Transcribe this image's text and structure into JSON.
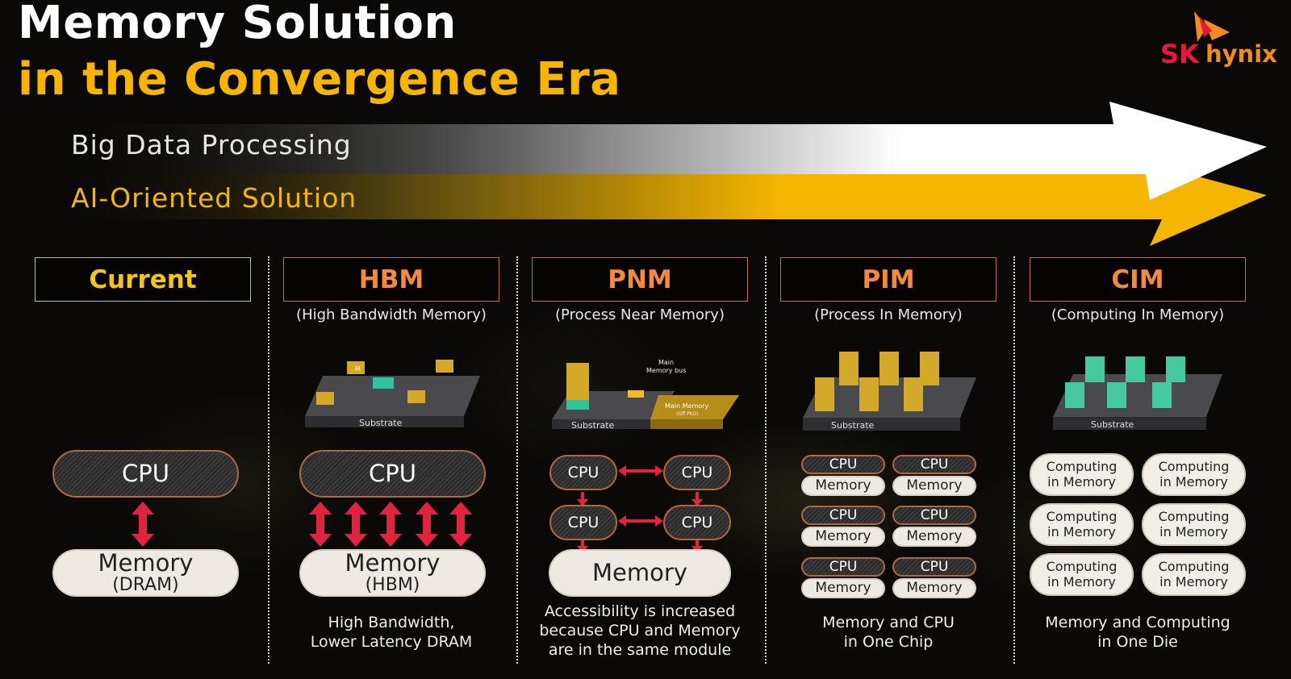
{
  "title": {
    "line1": "Memory Solution",
    "line2": "in the Convergence Era"
  },
  "logo": {
    "sk": "SK",
    "hynix": "hynix"
  },
  "bands": {
    "big_data": "Big Data Processing",
    "ai": "AI-Oriented Solution"
  },
  "colors": {
    "yellow": "#f7b500",
    "orange": "#f58a3c",
    "red": "#e0233f",
    "white": "#ffffff"
  },
  "columns": [
    {
      "header": "Current",
      "subtitle": "",
      "cpu": "CPU",
      "memory": "Memory",
      "memory_sub": "(DRAM)",
      "caption": []
    },
    {
      "header": "HBM",
      "subtitle": "(High Bandwidth Memory)",
      "cpu": "CPU",
      "memory": "Memory",
      "memory_sub": "(HBM)",
      "diagram": {
        "substrate": "Substrate",
        "chip": "M"
      },
      "caption": [
        "High Bandwidth,",
        "Lower Latency DRAM"
      ]
    },
    {
      "header": "PNM",
      "subtitle": "(Process Near Memory)",
      "cpu": "CPU",
      "memory": "Memory",
      "diagram": {
        "substrate": "Substrate",
        "bus": [
          "Main",
          "Memory bus"
        ],
        "main_memory": "Main Memory",
        "off_pkg": "(Off PKG)"
      },
      "caption": [
        "Accessibility is increased",
        "because CPU and Memory",
        "are in the same module"
      ]
    },
    {
      "header": "PIM",
      "subtitle": "(Process In Memory)",
      "cpu": "CPU",
      "memory": "Memory",
      "diagram": {
        "substrate": "Substrate"
      },
      "caption": [
        "Memory and CPU",
        "in One Chip"
      ]
    },
    {
      "header": "CIM",
      "subtitle": "(Computing In Memory)",
      "cell": [
        "Computing",
        "in Memory"
      ],
      "diagram": {
        "substrate": "Substrate"
      },
      "caption": [
        "Memory and Computing",
        "in One Die"
      ]
    }
  ]
}
